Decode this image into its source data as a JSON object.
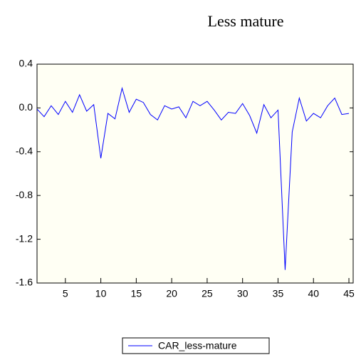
{
  "chart_data": {
    "type": "line",
    "title": "Less mature",
    "x": [
      1,
      2,
      3,
      4,
      5,
      6,
      7,
      8,
      9,
      10,
      11,
      12,
      13,
      14,
      15,
      16,
      17,
      18,
      19,
      20,
      21,
      22,
      23,
      24,
      25,
      26,
      27,
      28,
      29,
      30,
      31,
      32,
      33,
      34,
      35,
      36,
      37,
      38,
      39,
      40,
      41,
      42,
      43,
      44,
      45
    ],
    "series": [
      {
        "name": "CAR_less-mature",
        "color": "#0000ff",
        "values": [
          -0.01,
          -0.08,
          0.02,
          -0.06,
          0.06,
          -0.04,
          0.12,
          -0.03,
          0.03,
          -0.46,
          -0.05,
          -0.1,
          0.18,
          -0.04,
          0.08,
          0.05,
          -0.06,
          -0.11,
          0.02,
          -0.01,
          0.01,
          -0.09,
          0.06,
          0.02,
          0.06,
          -0.02,
          -0.11,
          -0.04,
          -0.05,
          0.04,
          -0.07,
          -0.23,
          0.03,
          -0.09,
          -0.02,
          -1.48,
          -0.22,
          0.09,
          -0.12,
          -0.05,
          -0.09,
          0.02,
          0.09,
          -0.06,
          -0.05
        ]
      }
    ],
    "xlim": [
      1,
      45.6
    ],
    "xticks": [
      5,
      10,
      15,
      20,
      25,
      30,
      35,
      40,
      45
    ],
    "ylim": [
      -1.6,
      0.4
    ],
    "yticks": [
      0.4,
      {
        "value": 0,
        "label": "0.0"
      },
      -0.4,
      -0.8,
      -1.2,
      -1.6
    ],
    "grid": false,
    "legend": "bottom"
  }
}
